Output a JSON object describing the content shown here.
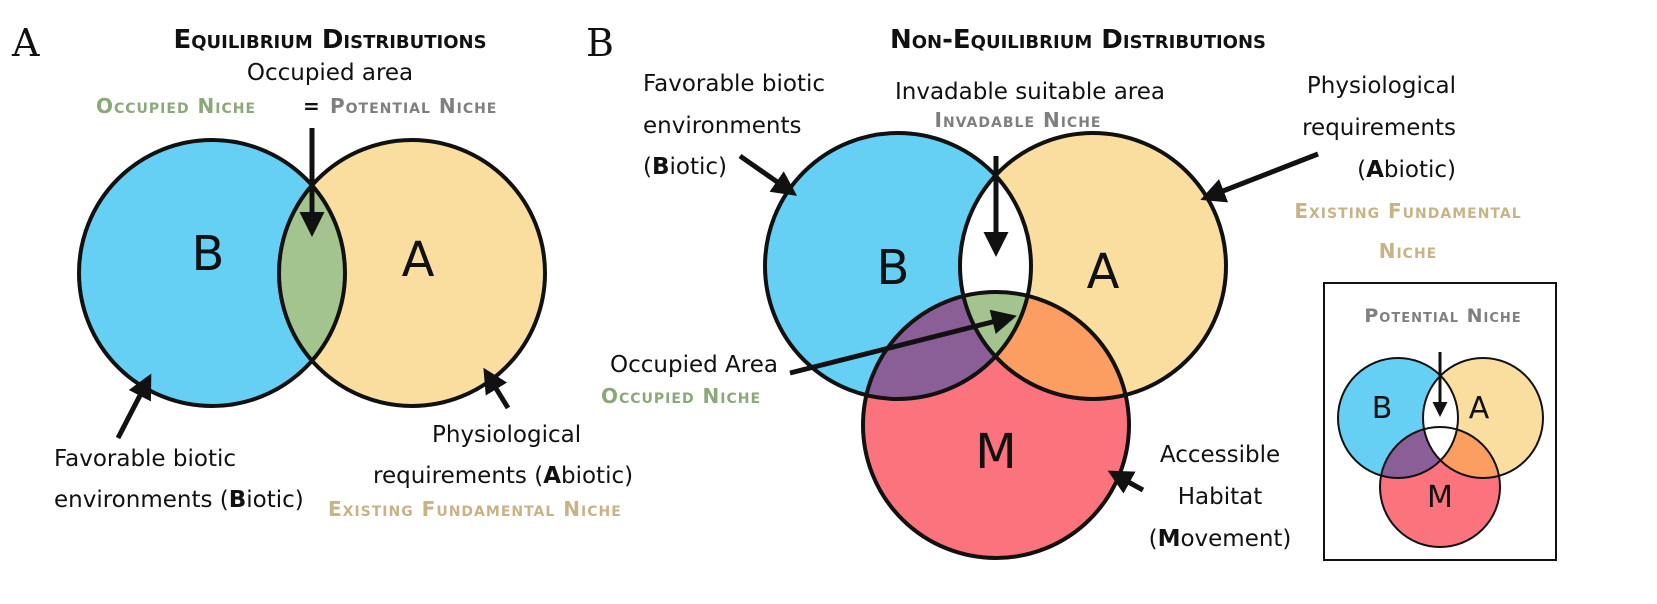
{
  "colors": {
    "biotic": "#66d0f4",
    "abiotic": "#f9dea0",
    "movement": "#fb737c",
    "occupied": "#a4c48f",
    "biotic_movement": "#8a5f98",
    "abiotic_movement": "#fc9e62",
    "invadable": "#ffffff",
    "green_text": "#8aa878",
    "gray_text": "#7f7f7f",
    "tan_text": "#c8b386",
    "outline": "#111111"
  },
  "panel_a": {
    "letter": "A",
    "title": "Equilibrium Distributions",
    "occupied_area": "Occupied area",
    "occupied_niche": "Occupied Niche",
    "equals": "=",
    "potential_niche": "Potential Niche",
    "circle_b": "B",
    "circle_a": "A",
    "biotic_line1": "Favorable biotic",
    "biotic_line2_pre": "environments (",
    "biotic_line2_bold": "B",
    "biotic_line2_post": "iotic)",
    "abiotic_line1": "Physiological",
    "abiotic_line2_pre": "requirements (",
    "abiotic_line2_bold": "A",
    "abiotic_line2_post": "biotic)",
    "existing_fundamental_niche": "Existing Fundamental Niche"
  },
  "panel_b": {
    "letter": "B",
    "title": "Non-Equilibrium Distributions",
    "biotic_line1": "Favorable biotic",
    "biotic_line2": "environments",
    "biotic_line3_pre": "(",
    "biotic_line3_bold": "B",
    "biotic_line3_post": "iotic)",
    "invadable_area": "Invadable suitable area",
    "invadable_niche": "Invadable Niche",
    "abiotic_line1": "Physiological",
    "abiotic_line2": "requirements",
    "abiotic_line3_pre": "(",
    "abiotic_line3_bold": "A",
    "abiotic_line3_post": "biotic)",
    "existing_line1": "Existing Fundamental",
    "existing_line2": "Niche",
    "circle_b": "B",
    "circle_a": "A",
    "circle_m": "M",
    "occupied_area": "Occupied Area",
    "occupied_niche": "Occupied Niche",
    "movement_line1": "Accessible",
    "movement_line2": "Habitat",
    "movement_line3_pre": "(",
    "movement_line3_bold": "M",
    "movement_line3_post": "ovement)"
  },
  "inset": {
    "title": "Potential Niche",
    "circle_b": "B",
    "circle_a": "A",
    "circle_m": "M"
  }
}
